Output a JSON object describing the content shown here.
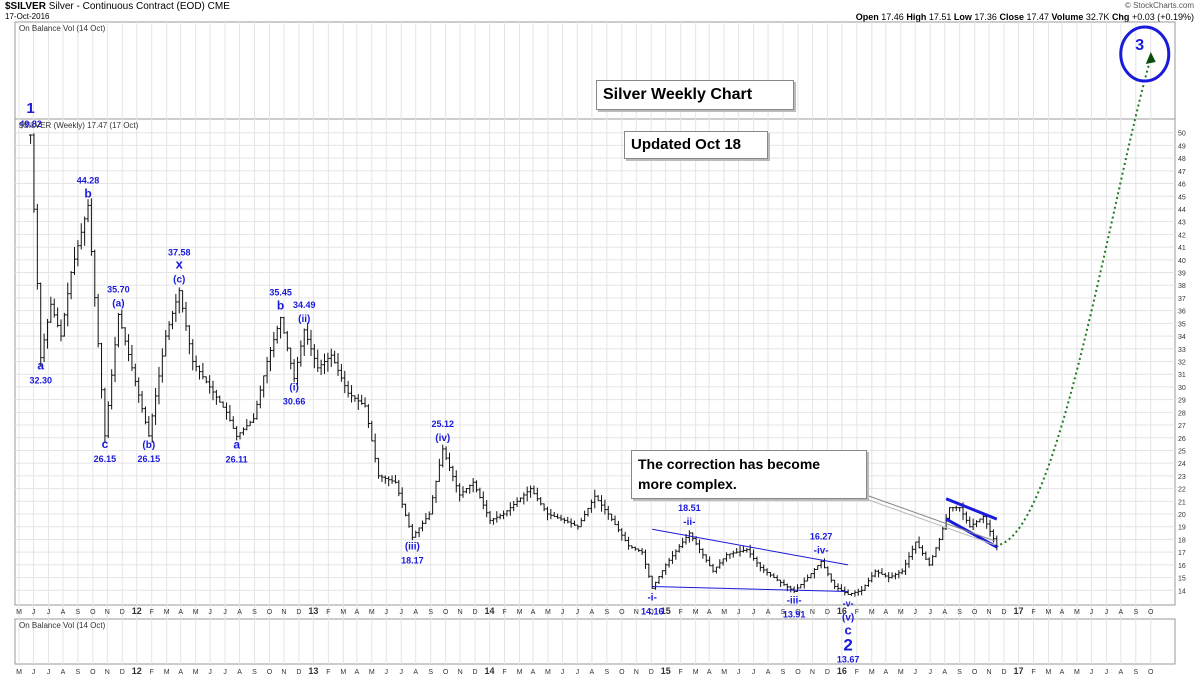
{
  "header": {
    "symbol": "$SILVER",
    "description": "Silver - Continuous Contract (EOD)",
    "exchange": "CME",
    "date": "17-Oct-2016",
    "credit": "© StockCharts.com",
    "quote": {
      "open_label": "Open",
      "open": "17.46",
      "high_label": "High",
      "high": "17.51",
      "low_label": "Low",
      "low": "17.36",
      "close_label": "Close",
      "close": "17.47",
      "volume_label": "Volume",
      "volume": "32.7K",
      "chg_label": "Chg",
      "chg": "+0.03 (+0.19%)"
    }
  },
  "panels": {
    "indicator_top_label": "On Balance Vol (14 Oct)",
    "price_label": "$SILVER (Weekly) 17.47 (17 Oct)",
    "indicator_bottom_label": "On Balance Vol (14 Oct)"
  },
  "notes": {
    "title": "Silver Weekly Chart",
    "updated": "Updated Oct 18",
    "comment_line1": "The correction has become",
    "comment_line2": "more complex."
  },
  "colors": {
    "wave": "#1a1adb",
    "bars": "#111111",
    "projection": "#1e7b1e",
    "grid": "#e4e4e4"
  },
  "chart_data": {
    "type": "ohlc",
    "title": "Silver Weekly Chart",
    "xlabel": "",
    "ylabel": "",
    "ylim": [
      13,
      51
    ],
    "y_ticks": [
      14,
      15,
      16,
      17,
      18,
      19,
      20,
      21,
      22,
      23,
      24,
      25,
      26,
      27,
      28,
      29,
      30,
      31,
      32,
      33,
      34,
      35,
      36,
      37,
      38,
      39,
      40,
      41,
      42,
      43,
      44,
      45,
      46,
      47,
      48,
      49,
      50
    ],
    "x_ticks": [
      "M",
      "J",
      "J",
      "A",
      "S",
      "O",
      "N",
      "D",
      "12",
      "F",
      "M",
      "A",
      "M",
      "J",
      "J",
      "A",
      "S",
      "O",
      "N",
      "D",
      "13",
      "F",
      "M",
      "A",
      "M",
      "J",
      "J",
      "A",
      "S",
      "O",
      "N",
      "D",
      "14",
      "F",
      "M",
      "A",
      "M",
      "J",
      "J",
      "A",
      "S",
      "O",
      "N",
      "D",
      "15",
      "F",
      "M",
      "A",
      "M",
      "J",
      "J",
      "A",
      "S",
      "O",
      "N",
      "D",
      "16",
      "F",
      "M",
      "A",
      "M",
      "J",
      "J",
      "A",
      "S",
      "O",
      "N",
      "D",
      "17",
      "F",
      "M",
      "A",
      "M",
      "J",
      "J",
      "A",
      "S",
      "O"
    ],
    "x_range": [
      "2011-04",
      "2017-10"
    ],
    "grid": true,
    "price_path": [
      [
        "2011-04-25",
        49.82
      ],
      [
        "2011-05-16",
        32.3
      ],
      [
        "2011-06-06",
        36.5
      ],
      [
        "2011-06-27",
        34.0
      ],
      [
        "2011-07-18",
        39.0
      ],
      [
        "2011-08-22",
        44.28
      ],
      [
        "2011-09-26",
        26.15
      ],
      [
        "2011-10-24",
        35.7
      ],
      [
        "2011-11-21",
        31.5
      ],
      [
        "2011-12-26",
        26.15
      ],
      [
        "2012-01-30",
        34.0
      ],
      [
        "2012-02-27",
        37.58
      ],
      [
        "2012-03-26",
        32.0
      ],
      [
        "2012-04-30",
        30.0
      ],
      [
        "2012-06-04",
        28.0
      ],
      [
        "2012-06-25",
        26.11
      ],
      [
        "2012-07-30",
        27.5
      ],
      [
        "2012-08-27",
        32.0
      ],
      [
        "2012-09-24",
        35.45
      ],
      [
        "2012-10-22",
        30.66
      ],
      [
        "2012-11-12",
        34.49
      ],
      [
        "2012-12-10",
        31.5
      ],
      [
        "2013-01-07",
        32.5
      ],
      [
        "2013-02-11",
        29.5
      ],
      [
        "2013-03-18",
        28.5
      ],
      [
        "2013-04-15",
        23.0
      ],
      [
        "2013-05-20",
        22.5
      ],
      [
        "2013-06-24",
        18.17
      ],
      [
        "2013-07-29",
        20.0
      ],
      [
        "2013-08-26",
        25.12
      ],
      [
        "2013-09-30",
        21.5
      ],
      [
        "2013-10-28",
        22.5
      ],
      [
        "2013-12-02",
        19.5
      ],
      [
        "2013-12-30",
        20.0
      ],
      [
        "2014-02-24",
        22.0
      ],
      [
        "2014-03-31",
        20.0
      ],
      [
        "2014-05-05",
        19.5
      ],
      [
        "2014-06-02",
        19.0
      ],
      [
        "2014-07-07",
        21.4
      ],
      [
        "2014-08-04",
        20.0
      ],
      [
        "2014-09-15",
        17.5
      ],
      [
        "2014-10-13",
        17.0
      ],
      [
        "2014-11-03",
        14.16
      ],
      [
        "2014-12-01",
        16.0
      ],
      [
        "2015-01-19",
        18.51
      ],
      [
        "2015-03-09",
        15.5
      ],
      [
        "2015-04-06",
        16.8
      ],
      [
        "2015-05-18",
        17.2
      ],
      [
        "2015-06-15",
        15.8
      ],
      [
        "2015-07-20",
        14.8
      ],
      [
        "2015-08-24",
        13.91
      ],
      [
        "2015-09-21",
        15.0
      ],
      [
        "2015-10-19",
        16.27
      ],
      [
        "2015-11-16",
        14.3
      ],
      [
        "2015-12-14",
        13.67
      ],
      [
        "2016-01-11",
        14.0
      ],
      [
        "2016-02-08",
        15.5
      ],
      [
        "2016-03-07",
        15.0
      ],
      [
        "2016-04-04",
        15.5
      ],
      [
        "2016-05-02",
        17.8
      ],
      [
        "2016-05-30",
        16.0
      ],
      [
        "2016-06-20",
        18.0
      ],
      [
        "2016-07-11",
        20.5
      ],
      [
        "2016-08-01",
        20.5
      ],
      [
        "2016-08-22",
        19.0
      ],
      [
        "2016-09-19",
        19.8
      ],
      [
        "2016-10-17",
        17.47
      ]
    ],
    "wave_labels": [
      {
        "d": "2011-04-25",
        "p": 49.82,
        "text": "49.82",
        "pos": "above",
        "size": 9
      },
      {
        "d": "2011-04-25",
        "p": 49.82,
        "text": "1",
        "pos": "above2",
        "size": 15
      },
      {
        "d": "2011-05-16",
        "p": 32.3,
        "text": "a",
        "pos": "below",
        "size": 12
      },
      {
        "d": "2011-05-16",
        "p": 32.3,
        "text": "32.30",
        "pos": "below2",
        "size": 9
      },
      {
        "d": "2011-08-22",
        "p": 44.28,
        "text": "b",
        "pos": "above",
        "size": 12
      },
      {
        "d": "2011-08-22",
        "p": 44.28,
        "text": "44.28",
        "pos": "above2",
        "size": 9
      },
      {
        "d": "2011-09-26",
        "p": 26.15,
        "text": "c",
        "pos": "below",
        "size": 12
      },
      {
        "d": "2011-09-26",
        "p": 26.15,
        "text": "26.15",
        "pos": "below2",
        "size": 9
      },
      {
        "d": "2011-10-24",
        "p": 35.7,
        "text": "(a)",
        "pos": "above",
        "size": 10
      },
      {
        "d": "2011-10-24",
        "p": 35.7,
        "text": "35.70",
        "pos": "above2",
        "size": 9
      },
      {
        "d": "2011-12-26",
        "p": 26.15,
        "text": "(b)",
        "pos": "below",
        "size": 10
      },
      {
        "d": "2011-12-26",
        "p": 26.15,
        "text": "26.15",
        "pos": "below2",
        "size": 9
      },
      {
        "d": "2012-02-27",
        "p": 37.58,
        "text": "(c)",
        "pos": "above",
        "size": 10
      },
      {
        "d": "2012-02-27",
        "p": 37.58,
        "text": "x",
        "pos": "above2",
        "size": 13
      },
      {
        "d": "2012-02-27",
        "p": 37.58,
        "text": "37.58",
        "pos": "above3",
        "size": 9
      },
      {
        "d": "2012-06-25",
        "p": 26.11,
        "text": "a",
        "pos": "below",
        "size": 12
      },
      {
        "d": "2012-06-25",
        "p": 26.11,
        "text": "26.11",
        "pos": "below2",
        "size": 9
      },
      {
        "d": "2012-09-24",
        "p": 35.45,
        "text": "b",
        "pos": "above",
        "size": 12
      },
      {
        "d": "2012-09-24",
        "p": 35.45,
        "text": "35.45",
        "pos": "above2",
        "size": 9
      },
      {
        "d": "2012-10-22",
        "p": 30.66,
        "text": "(i)",
        "pos": "below",
        "size": 10
      },
      {
        "d": "2012-10-22",
        "p": 30.66,
        "text": "30.66",
        "pos": "below2",
        "size": 9
      },
      {
        "d": "2012-11-12",
        "p": 34.49,
        "text": "(ii)",
        "pos": "above",
        "size": 10
      },
      {
        "d": "2012-11-12",
        "p": 34.49,
        "text": "34.49",
        "pos": "above2",
        "size": 9
      },
      {
        "d": "2013-06-24",
        "p": 18.17,
        "text": "(iii)",
        "pos": "below",
        "size": 10
      },
      {
        "d": "2013-06-24",
        "p": 18.17,
        "text": "18.17",
        "pos": "below2",
        "size": 9
      },
      {
        "d": "2013-08-26",
        "p": 25.12,
        "text": "(iv)",
        "pos": "above",
        "size": 10
      },
      {
        "d": "2013-08-26",
        "p": 25.12,
        "text": "25.12",
        "pos": "above2",
        "size": 9
      },
      {
        "d": "2014-11-03",
        "p": 14.16,
        "text": "-i-",
        "pos": "below",
        "size": 10
      },
      {
        "d": "2014-11-03",
        "p": 14.16,
        "text": "14.16",
        "pos": "below2",
        "size": 9
      },
      {
        "d": "2015-01-19",
        "p": 18.51,
        "text": "-ii-",
        "pos": "above",
        "size": 10
      },
      {
        "d": "2015-01-19",
        "p": 18.51,
        "text": "18.51",
        "pos": "above2",
        "size": 9
      },
      {
        "d": "2015-08-24",
        "p": 13.91,
        "text": "-iii-",
        "pos": "below",
        "size": 10
      },
      {
        "d": "2015-08-24",
        "p": 13.91,
        "text": "13.91",
        "pos": "below2",
        "size": 9
      },
      {
        "d": "2015-10-19",
        "p": 16.27,
        "text": "-iv-",
        "pos": "above",
        "size": 10
      },
      {
        "d": "2015-10-19",
        "p": 16.27,
        "text": "16.27",
        "pos": "above2",
        "size": 9
      },
      {
        "d": "2015-12-14",
        "p": 13.67,
        "text": "-v-",
        "pos": "below",
        "size": 9
      },
      {
        "d": "2015-12-14",
        "p": 13.67,
        "text": "(v)",
        "pos": "below2",
        "size": 10
      },
      {
        "d": "2015-12-14",
        "p": 13.67,
        "text": "c",
        "pos": "below3",
        "size": 13
      },
      {
        "d": "2015-12-14",
        "p": 13.67,
        "text": "2",
        "pos": "below4",
        "size": 17
      },
      {
        "d": "2015-12-14",
        "p": 13.67,
        "text": "13.67",
        "pos": "below5",
        "size": 9
      }
    ],
    "wave3_label": "3",
    "trendlines": [
      {
        "from": [
          "2014-11-03",
          18.8
        ],
        "to": [
          "2015-12-14",
          16.0
        ],
        "color": "#1a1adb",
        "width": 1
      },
      {
        "from": [
          "2014-11-03",
          14.3
        ],
        "to": [
          "2015-12-14",
          13.9
        ],
        "color": "#1a1adb",
        "width": 1
      },
      {
        "from": [
          "2016-07-04",
          21.2
        ],
        "to": [
          "2016-10-17",
          19.6
        ],
        "color": "#1a1adb",
        "width": 3
      },
      {
        "from": [
          "2016-07-04",
          19.6
        ],
        "to": [
          "2016-10-17",
          17.4
        ],
        "color": "#1a1adb",
        "width": 3
      }
    ],
    "projection": {
      "from": [
        "2016-10-24",
        17.6
      ],
      "to": [
        "2017-09-01",
        50.5
      ]
    }
  }
}
